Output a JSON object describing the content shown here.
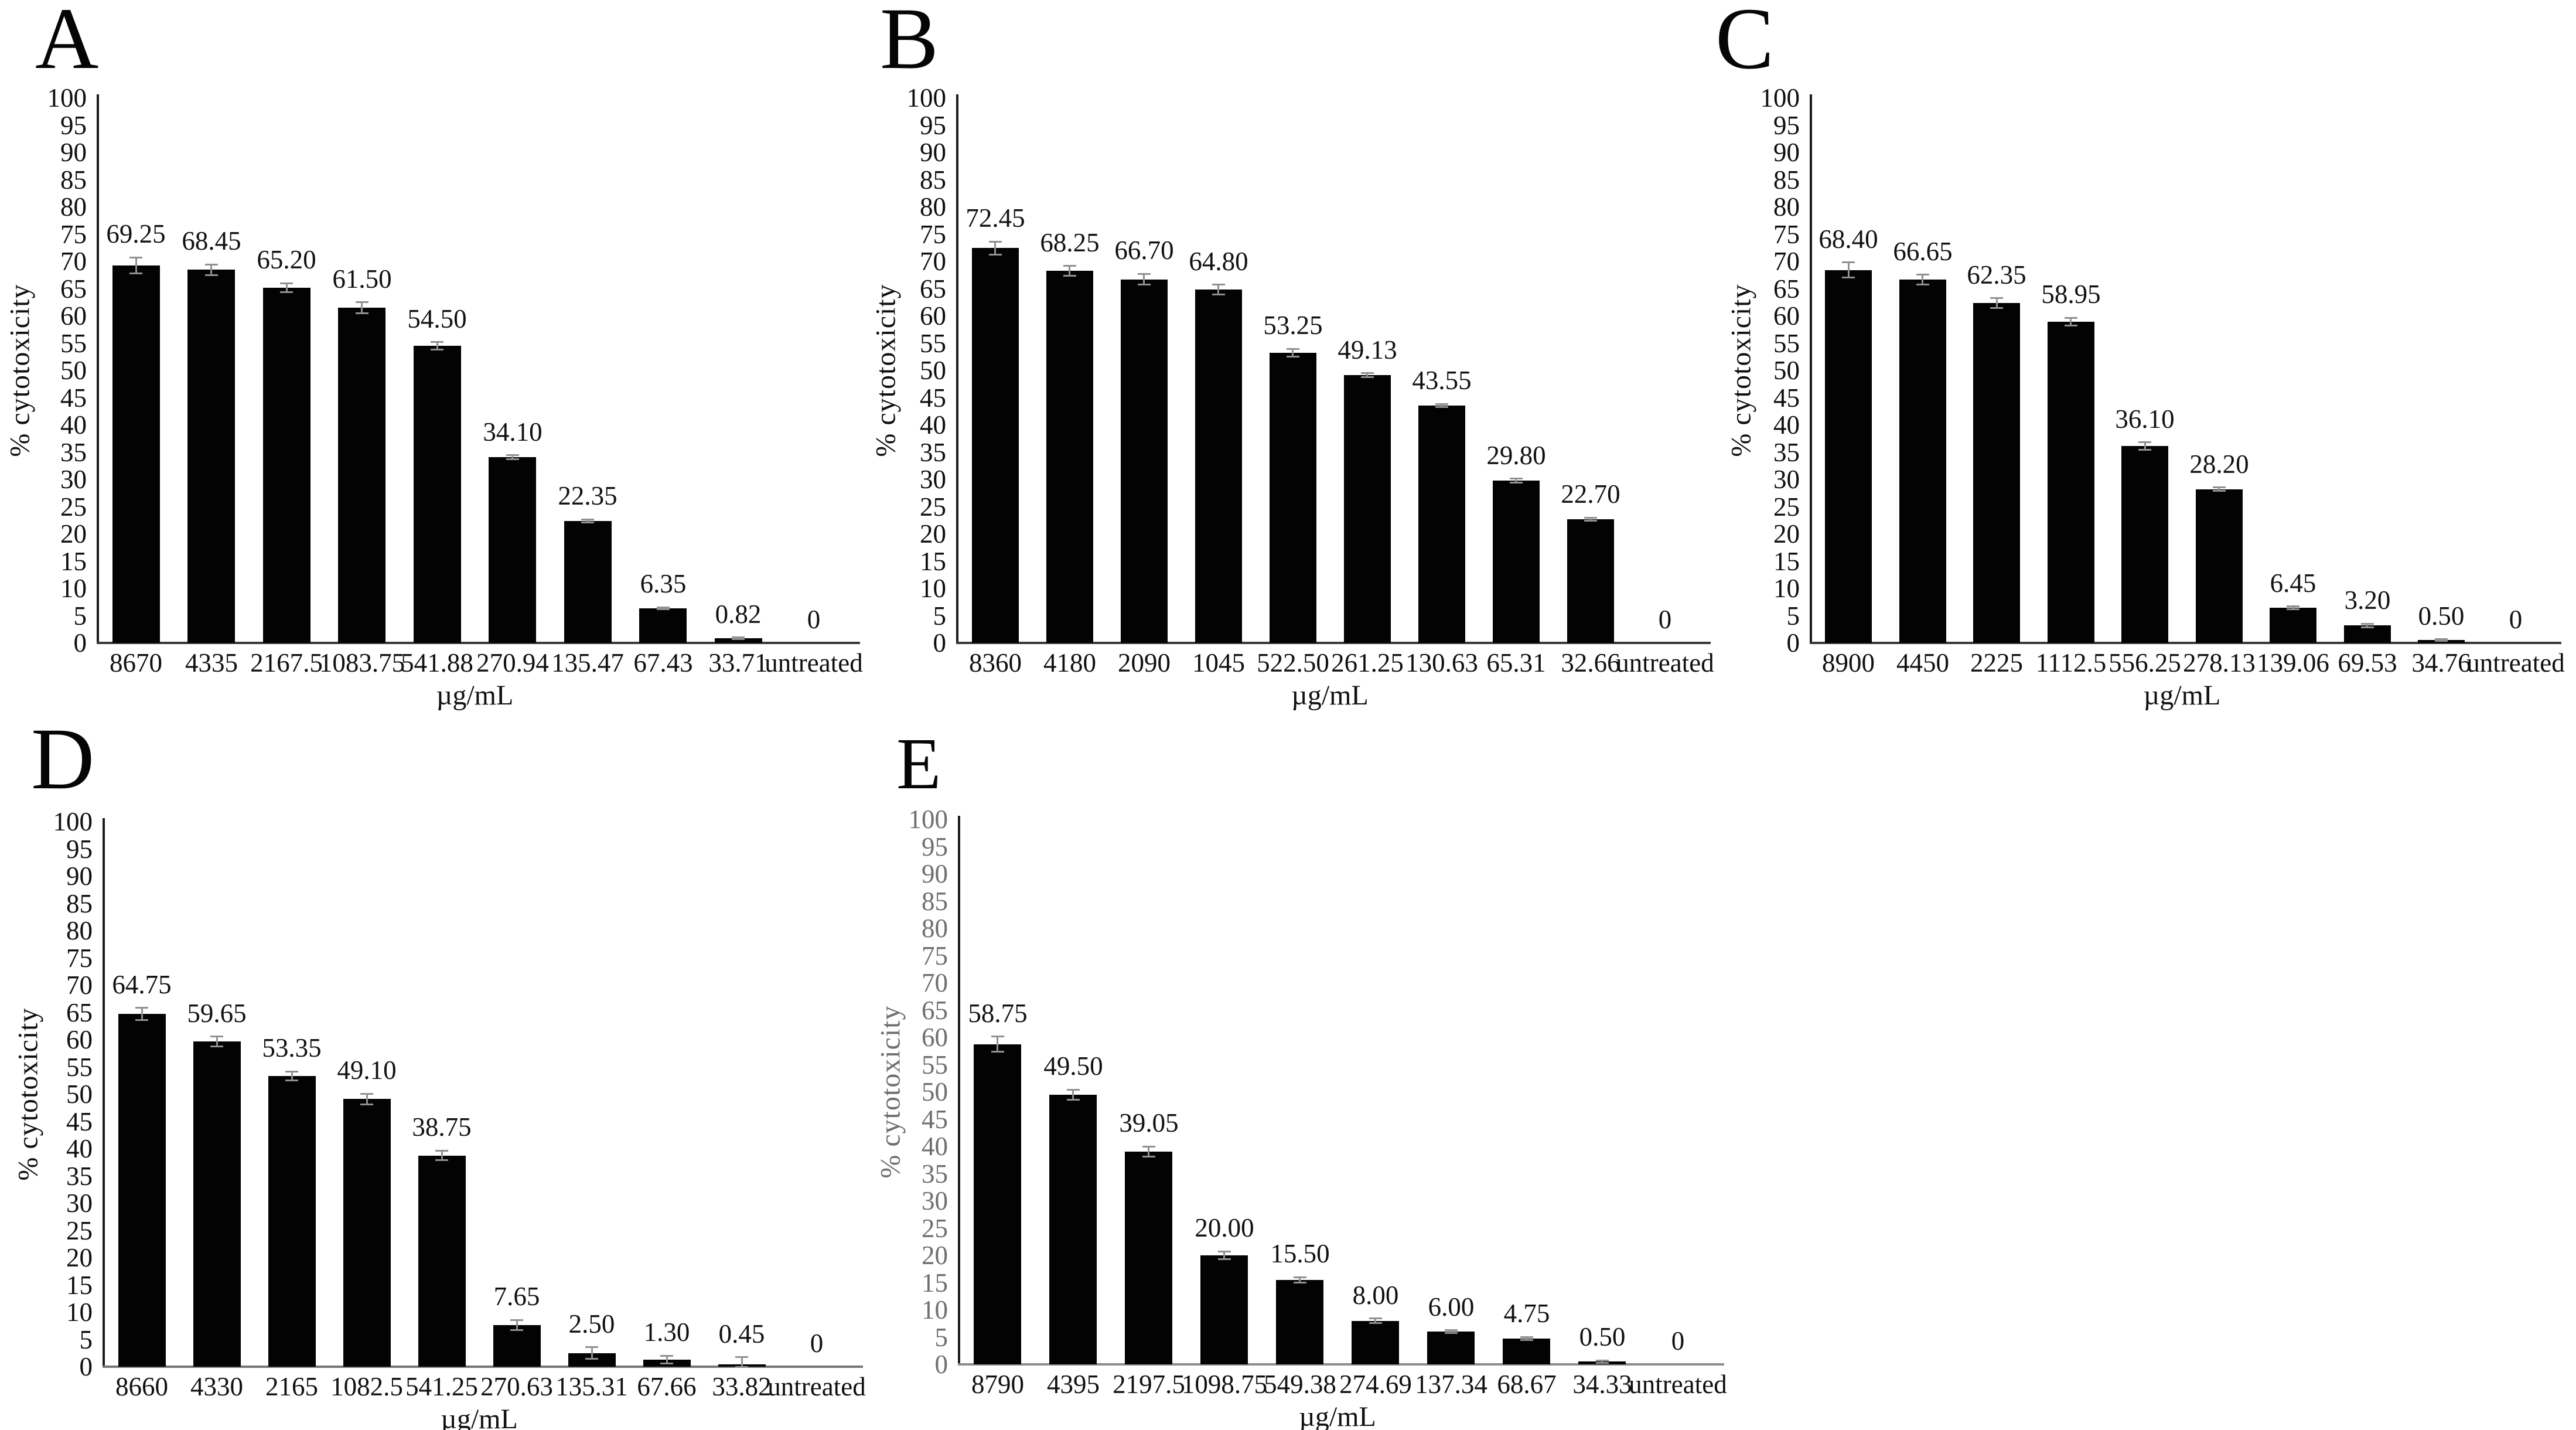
{
  "figure": {
    "background": "#ffffff",
    "error_bar_color": "#909090",
    "data_label_color": "#111111",
    "bar_color": "#030303"
  },
  "chart_data": [
    {
      "panel": "A",
      "type": "bar",
      "categories": [
        "8670",
        "4335",
        "2167.5",
        "1083.75",
        "541.88",
        "270.94",
        "135.47",
        "67.43",
        "33.71",
        "untreated"
      ],
      "values": [
        69.25,
        68.45,
        65.2,
        61.5,
        54.5,
        34.1,
        22.35,
        6.35,
        0.82,
        0
      ],
      "value_labels": [
        "69.25",
        "68.45",
        "65.20",
        "61.50",
        "54.50",
        "34.10",
        "22.35",
        "6.35",
        "0.82",
        "0"
      ],
      "errors": [
        1.5,
        1.0,
        0.8,
        1.0,
        0.7,
        0.35,
        0.3,
        0.2,
        0.15,
        0
      ],
      "xlabel": "µg/mL",
      "ylabel": "% cytotoxicity",
      "ylim": [
        0,
        100
      ],
      "ytick_step": 5,
      "grid": false,
      "legend": "none",
      "bar_color": "#030303",
      "axis_text_color": "#0f0f0f",
      "baseline_color": "#3a3a3a"
    },
    {
      "panel": "B",
      "type": "bar",
      "categories": [
        "8360",
        "4180",
        "2090",
        "1045",
        "522.50",
        "261.25",
        "130.63",
        "65.31",
        "32.66",
        "untreated"
      ],
      "values": [
        72.45,
        68.25,
        66.7,
        64.8,
        53.25,
        49.13,
        43.55,
        29.8,
        22.7,
        0
      ],
      "value_labels": [
        "72.45",
        "68.25",
        "66.70",
        "64.80",
        "53.25",
        "49.13",
        "43.55",
        "29.80",
        "22.70",
        "0"
      ],
      "errors": [
        1.2,
        0.9,
        1.0,
        0.9,
        0.7,
        0.35,
        0.3,
        0.35,
        0.3,
        0
      ],
      "xlabel": "µg/mL",
      "ylabel": "% cytotoxicity",
      "ylim": [
        0,
        100
      ],
      "ytick_step": 5,
      "grid": false,
      "legend": "none",
      "bar_color": "#030303",
      "axis_text_color": "#0f0f0f",
      "baseline_color": "#3a3a3a"
    },
    {
      "panel": "C",
      "type": "bar",
      "categories": [
        "8900",
        "4450",
        "2225",
        "1112.5",
        "556.25",
        "278.13",
        "139.06",
        "69.53",
        "34.76",
        "untreated"
      ],
      "values": [
        68.4,
        66.65,
        62.35,
        58.95,
        36.1,
        28.2,
        6.45,
        3.2,
        0.5,
        0
      ],
      "value_labels": [
        "68.40",
        "66.65",
        "62.35",
        "58.95",
        "36.10",
        "28.20",
        "6.45",
        "3.20",
        "0.50",
        "0"
      ],
      "errors": [
        1.4,
        0.9,
        0.9,
        0.7,
        0.7,
        0.3,
        0.25,
        0.3,
        0.15,
        0
      ],
      "xlabel": "µg/mL",
      "ylabel": "% cytotoxicity",
      "ylim": [
        0,
        100
      ],
      "ytick_step": 5,
      "grid": false,
      "legend": "none",
      "bar_color": "#030303",
      "axis_text_color": "#0f0f0f",
      "baseline_color": "#3a3a3a"
    },
    {
      "panel": "D",
      "type": "bar",
      "categories": [
        "8660",
        "4330",
        "2165",
        "1082.5",
        "541.25",
        "270.63",
        "135.31",
        "67.66",
        "33.82",
        "untreated"
      ],
      "values": [
        64.75,
        59.65,
        53.35,
        49.1,
        38.75,
        7.65,
        2.5,
        1.3,
        0.45,
        0
      ],
      "value_labels": [
        "64.75",
        "59.65",
        "53.35",
        "49.10",
        "38.75",
        "7.65",
        "2.50",
        "1.30",
        "0.45",
        "0"
      ],
      "errors": [
        1.1,
        0.9,
        0.8,
        1.0,
        0.9,
        0.9,
        1.1,
        0.7,
        1.3,
        0
      ],
      "xlabel": "µg/mL",
      "ylabel": "% cytotoxicity",
      "ylim": [
        0,
        100
      ],
      "ytick_step": 5,
      "grid": false,
      "legend": "none",
      "bar_color": "#030303",
      "axis_text_color": "#0f0f0f",
      "baseline_color": "#767676"
    },
    {
      "panel": "E",
      "type": "bar",
      "categories": [
        "8790",
        "4395",
        "2197.5",
        "1098.75",
        "549.38",
        "274.69",
        "137.34",
        "68.67",
        "34.33",
        "untreated"
      ],
      "values": [
        58.75,
        49.5,
        39.05,
        20.0,
        15.5,
        8.0,
        6.0,
        4.75,
        0.5,
        0
      ],
      "value_labels": [
        "58.75",
        "49.50",
        "39.05",
        "20.00",
        "15.50",
        "8.00",
        "6.00",
        "4.75",
        "0.50",
        "0"
      ],
      "errors": [
        1.4,
        0.9,
        0.9,
        0.7,
        0.5,
        0.4,
        0.25,
        0.3,
        0.2,
        0
      ],
      "xlabel": "µg/mL",
      "ylabel": "% cytotoxicity",
      "ylim": [
        0,
        100
      ],
      "ytick_step": 5,
      "grid": false,
      "legend": "none",
      "bar_color": "#030303",
      "axis_text_color": "#6f6f6f",
      "baseline_color": "#8d8d8d"
    }
  ]
}
